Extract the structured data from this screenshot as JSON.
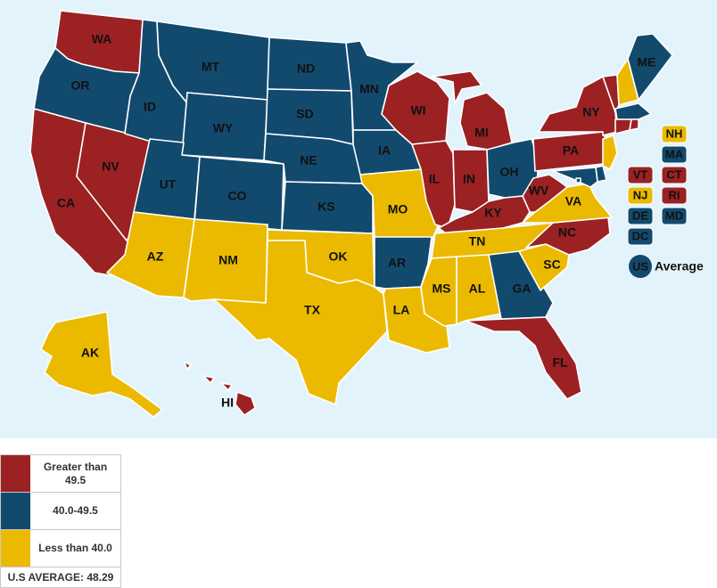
{
  "colors": {
    "high": "#9b2122",
    "mid": "#124a6e",
    "low": "#ebba00",
    "water": "#e3f3fb"
  },
  "states": {
    "WA": {
      "label": "WA",
      "category": "high"
    },
    "OR": {
      "label": "OR",
      "category": "mid"
    },
    "CA": {
      "label": "CA",
      "category": "high"
    },
    "NV": {
      "label": "NV",
      "category": "high"
    },
    "ID": {
      "label": "ID",
      "category": "mid"
    },
    "MT": {
      "label": "MT",
      "category": "mid"
    },
    "WY": {
      "label": "WY",
      "category": "mid"
    },
    "UT": {
      "label": "UT",
      "category": "mid"
    },
    "CO": {
      "label": "CO",
      "category": "mid"
    },
    "AZ": {
      "label": "AZ",
      "category": "low"
    },
    "NM": {
      "label": "NM",
      "category": "low"
    },
    "ND": {
      "label": "ND",
      "category": "mid"
    },
    "SD": {
      "label": "SD",
      "category": "mid"
    },
    "NE": {
      "label": "NE",
      "category": "mid"
    },
    "KS": {
      "label": "KS",
      "category": "mid"
    },
    "OK": {
      "label": "OK",
      "category": "low"
    },
    "TX": {
      "label": "TX",
      "category": "low"
    },
    "MN": {
      "label": "MN",
      "category": "mid"
    },
    "IA": {
      "label": "IA",
      "category": "mid"
    },
    "MO": {
      "label": "MO",
      "category": "low"
    },
    "AR": {
      "label": "AR",
      "category": "mid"
    },
    "LA": {
      "label": "LA",
      "category": "low"
    },
    "WI": {
      "label": "WI",
      "category": "high"
    },
    "IL": {
      "label": "IL",
      "category": "high"
    },
    "MI": {
      "label": "MI",
      "category": "high"
    },
    "IN": {
      "label": "IN",
      "category": "high"
    },
    "OH": {
      "label": "OH",
      "category": "mid"
    },
    "KY": {
      "label": "KY",
      "category": "high"
    },
    "TN": {
      "label": "TN",
      "category": "low"
    },
    "MS": {
      "label": "MS",
      "category": "low"
    },
    "AL": {
      "label": "AL",
      "category": "low"
    },
    "GA": {
      "label": "GA",
      "category": "mid"
    },
    "FL": {
      "label": "FL",
      "category": "high"
    },
    "SC": {
      "label": "SC",
      "category": "low"
    },
    "NC": {
      "label": "NC",
      "category": "high"
    },
    "VA": {
      "label": "VA",
      "category": "low"
    },
    "WV": {
      "label": "WV",
      "category": "high"
    },
    "PA": {
      "label": "PA",
      "category": "high"
    },
    "NY": {
      "label": "NY",
      "category": "high"
    },
    "ME": {
      "label": "ME",
      "category": "mid"
    },
    "NH": {
      "label": "NH",
      "category": "low"
    },
    "VT": {
      "label": "VT",
      "category": "high"
    },
    "MA": {
      "label": "MA",
      "category": "mid"
    },
    "CT": {
      "label": "CT",
      "category": "high"
    },
    "RI": {
      "label": "RI",
      "category": "high"
    },
    "NJ": {
      "label": "NJ",
      "category": "low"
    },
    "DE": {
      "label": "DE",
      "category": "mid"
    },
    "MD": {
      "label": "MD",
      "category": "mid"
    },
    "DC": {
      "label": "DC",
      "category": "mid"
    },
    "AK": {
      "label": "AK",
      "category": "low"
    },
    "HI": {
      "label": "HI",
      "category": "high"
    }
  },
  "us_average": {
    "badge": "US",
    "label": "Average",
    "category": "mid"
  },
  "legend": {
    "high": "Greater than 49.5",
    "mid": "40.0-49.5",
    "low": "Less than 40.0",
    "footer": "U.S AVERAGE: 48.29"
  }
}
